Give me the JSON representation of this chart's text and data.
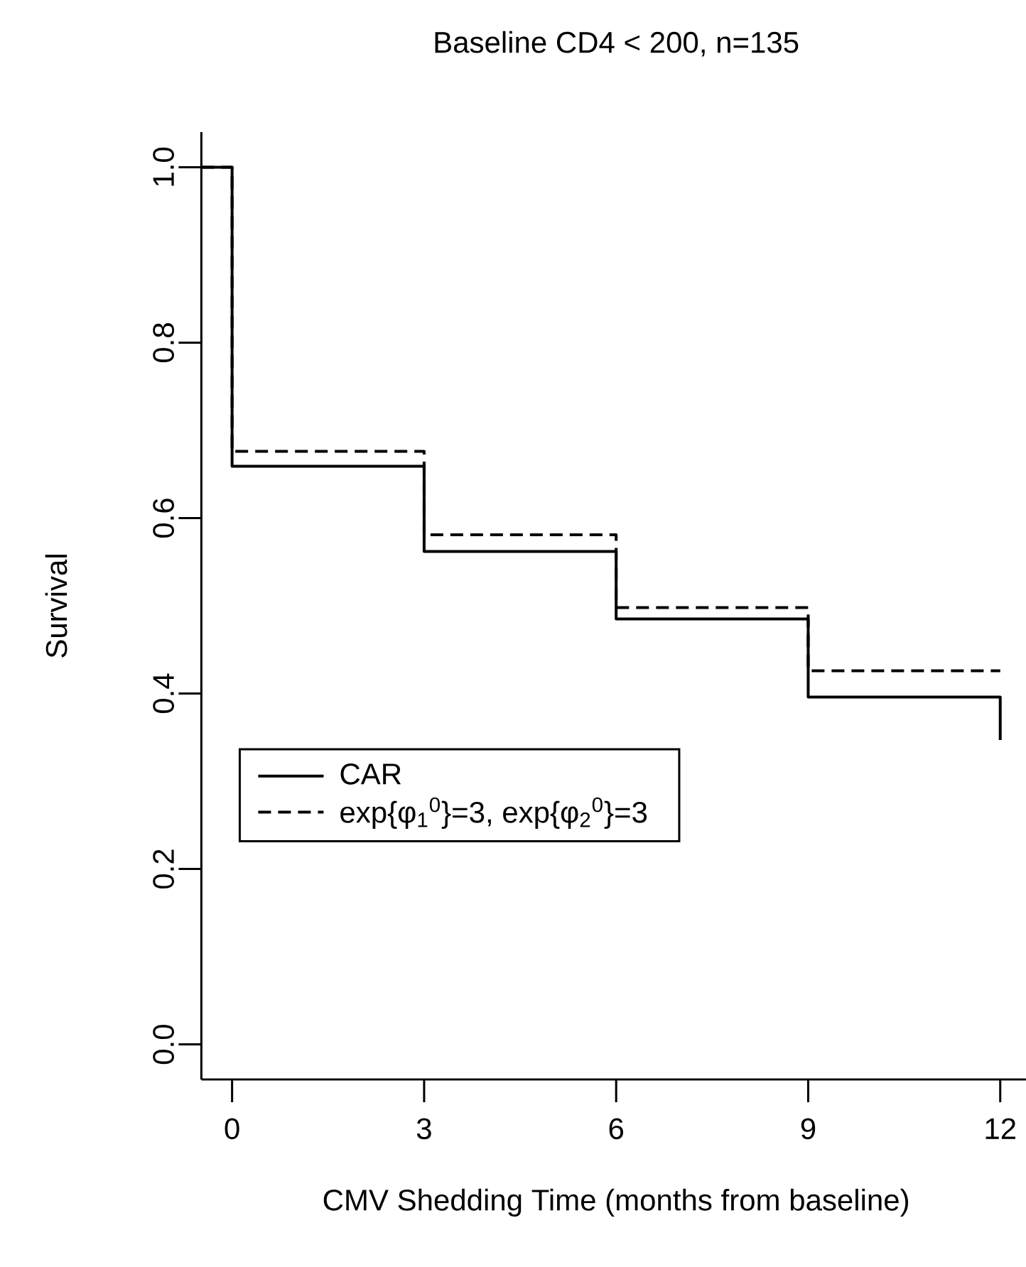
{
  "chart_data": {
    "type": "step",
    "title": "Baseline CD4 < 200, n=135",
    "xlabel": "CMV Shedding Time (months from baseline)",
    "ylabel": "Survival",
    "xlim": [
      -0.48,
      12.48
    ],
    "ylim": [
      -0.04,
      1.04
    ],
    "xticks": [
      0,
      3,
      6,
      9,
      12
    ],
    "yticks": [
      {
        "value": 0,
        "label": "0.0"
      },
      {
        "value": 0.2,
        "label": "0.2"
      },
      {
        "value": 0.4,
        "label": "0.4"
      },
      {
        "value": 0.6,
        "label": "0.6"
      },
      {
        "value": 0.8,
        "label": "0.8"
      },
      {
        "value": 1,
        "label": "1.0"
      }
    ],
    "legend": "left",
    "series": [
      {
        "name": "CAR",
        "color": "#000000",
        "line_style": "solid",
        "x": [
          -0.48,
          0,
          3,
          6,
          9,
          12
        ],
        "values": [
          1,
          0.659,
          0.562,
          0.485,
          0.396,
          0.347
        ]
      },
      {
        "name": "exp{φ$_{1}$$^{0}$}=3, exp{φ$_{2}$$^{0}$}=3",
        "color": "#000000",
        "line_style": "dashed",
        "x": [
          -0.48,
          0,
          3,
          6,
          9,
          12
        ],
        "values": [
          1,
          0.676,
          0.581,
          0.498,
          0.426,
          0.426
        ]
      }
    ]
  }
}
